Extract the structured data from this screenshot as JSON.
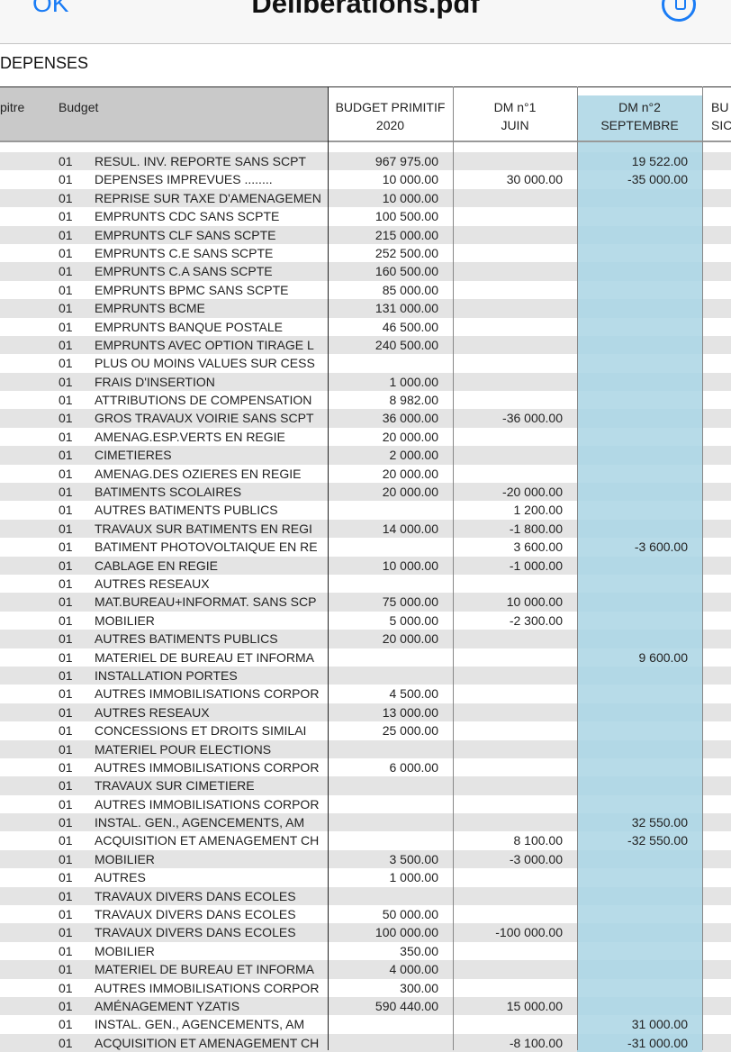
{
  "navbar": {
    "ok_label": "OK",
    "title": "Deliberations.pdf",
    "markup_icon": "markup-pen-icon",
    "accent": "#1a7cf5"
  },
  "section_title": "DEPENSES",
  "headers": {
    "chapitre": "pitre",
    "budget": "Budget",
    "bp_line1": "BUDGET PRIMITIF",
    "bp_line2": "2020",
    "dm1_line1": "DM n°1",
    "dm1_line2": "JUIN",
    "dm2_line1": "DM n°2",
    "dm2_line2": "SEPTEMBRE",
    "next_line1": "BU",
    "next_line2": "SIC"
  },
  "highlight_color": "#b7dbe8",
  "rows": [
    {
      "code": "01",
      "label": "RESUL. INV. REPORTE SANS SCPT",
      "bp": "967 975.00",
      "dm1": "",
      "dm2": "19 522.00"
    },
    {
      "code": "01",
      "label": "DEPENSES IMPREVUES ........",
      "bp": "10 000.00",
      "dm1": "30 000.00",
      "dm2": "-35 000.00"
    },
    {
      "code": "01",
      "label": "REPRISE SUR TAXE D'AMENAGEMEN",
      "bp": "10 000.00",
      "dm1": "",
      "dm2": ""
    },
    {
      "code": "01",
      "label": "EMPRUNTS CDC SANS SCPTE",
      "bp": "100 500.00",
      "dm1": "",
      "dm2": ""
    },
    {
      "code": "01",
      "label": "EMPRUNTS CLF SANS SCPTE",
      "bp": "215 000.00",
      "dm1": "",
      "dm2": ""
    },
    {
      "code": "01",
      "label": "EMPRUNTS C.E SANS SCPTE",
      "bp": "252 500.00",
      "dm1": "",
      "dm2": ""
    },
    {
      "code": "01",
      "label": "EMPRUNTS C.A SANS SCPTE",
      "bp": "160 500.00",
      "dm1": "",
      "dm2": ""
    },
    {
      "code": "01",
      "label": "EMPRUNTS BPMC SANS SCPTE",
      "bp": "85 000.00",
      "dm1": "",
      "dm2": ""
    },
    {
      "code": "01",
      "label": "EMPRUNTS BCME",
      "bp": "131 000.00",
      "dm1": "",
      "dm2": ""
    },
    {
      "code": "01",
      "label": "EMPRUNTS BANQUE POSTALE",
      "bp": "46 500.00",
      "dm1": "",
      "dm2": ""
    },
    {
      "code": "01",
      "label": "EMPRUNTS AVEC OPTION TIRAGE L",
      "bp": "240 500.00",
      "dm1": "",
      "dm2": ""
    },
    {
      "code": "01",
      "label": "PLUS OU MOINS VALUES SUR CESS",
      "bp": "",
      "dm1": "",
      "dm2": ""
    },
    {
      "code": "01",
      "label": "FRAIS D'INSERTION",
      "bp": "1 000.00",
      "dm1": "",
      "dm2": ""
    },
    {
      "code": "01",
      "label": "ATTRIBUTIONS DE COMPENSATION",
      "bp": "8 982.00",
      "dm1": "",
      "dm2": ""
    },
    {
      "code": "01",
      "label": "GROS TRAVAUX VOIRIE SANS SCPT",
      "bp": "36 000.00",
      "dm1": "-36 000.00",
      "dm2": ""
    },
    {
      "code": "01",
      "label": "AMENAG.ESP.VERTS EN REGIE",
      "bp": "20 000.00",
      "dm1": "",
      "dm2": ""
    },
    {
      "code": "01",
      "label": "CIMETIERES",
      "bp": "2 000.00",
      "dm1": "",
      "dm2": ""
    },
    {
      "code": "01",
      "label": "AMENAG.DES OZIERES EN REGIE",
      "bp": "20 000.00",
      "dm1": "",
      "dm2": ""
    },
    {
      "code": "01",
      "label": "BATIMENTS SCOLAIRES",
      "bp": "20 000.00",
      "dm1": "-20 000.00",
      "dm2": ""
    },
    {
      "code": "01",
      "label": "AUTRES BATIMENTS PUBLICS",
      "bp": "",
      "dm1": "1 200.00",
      "dm2": ""
    },
    {
      "code": "01",
      "label": "TRAVAUX SUR BATIMENTS EN REGI",
      "bp": "14 000.00",
      "dm1": "-1 800.00",
      "dm2": ""
    },
    {
      "code": "01",
      "label": "BATIMENT PHOTOVOLTAIQUE EN RE",
      "bp": "",
      "dm1": "3 600.00",
      "dm2": "-3 600.00"
    },
    {
      "code": "01",
      "label": "CABLAGE EN REGIE",
      "bp": "10 000.00",
      "dm1": "-1 000.00",
      "dm2": ""
    },
    {
      "code": "01",
      "label": "AUTRES RESEAUX",
      "bp": "",
      "dm1": "",
      "dm2": ""
    },
    {
      "code": "01",
      "label": "MAT.BUREAU+INFORMAT. SANS SCP",
      "bp": "75 000.00",
      "dm1": "10 000.00",
      "dm2": ""
    },
    {
      "code": "01",
      "label": "MOBILIER",
      "bp": "5 000.00",
      "dm1": "-2 300.00",
      "dm2": ""
    },
    {
      "code": "01",
      "label": "AUTRES BATIMENTS PUBLICS",
      "bp": "20 000.00",
      "dm1": "",
      "dm2": ""
    },
    {
      "code": "01",
      "label": "MATERIEL DE BUREAU ET INFORMA",
      "bp": "",
      "dm1": "",
      "dm2": "9 600.00"
    },
    {
      "code": "01",
      "label": "INSTALLATION PORTES",
      "bp": "",
      "dm1": "",
      "dm2": ""
    },
    {
      "code": "01",
      "label": "AUTRES IMMOBILISATIONS CORPOR",
      "bp": "4 500.00",
      "dm1": "",
      "dm2": ""
    },
    {
      "code": "01",
      "label": "AUTRES RESEAUX",
      "bp": "13 000.00",
      "dm1": "",
      "dm2": ""
    },
    {
      "code": "01",
      "label": "CONCESSIONS ET DROITS SIMILAI",
      "bp": "25 000.00",
      "dm1": "",
      "dm2": ""
    },
    {
      "code": "01",
      "label": "MATERIEL POUR ELECTIONS",
      "bp": "",
      "dm1": "",
      "dm2": ""
    },
    {
      "code": "01",
      "label": "AUTRES IMMOBILISATIONS CORPOR",
      "bp": "6 000.00",
      "dm1": "",
      "dm2": ""
    },
    {
      "code": "01",
      "label": "TRAVAUX SUR CIMETIERE",
      "bp": "",
      "dm1": "",
      "dm2": ""
    },
    {
      "code": "01",
      "label": "AUTRES IMMOBILISATIONS CORPOR",
      "bp": "",
      "dm1": "",
      "dm2": ""
    },
    {
      "code": "01",
      "label": "INSTAL. GEN., AGENCEMENTS, AM",
      "bp": "",
      "dm1": "",
      "dm2": "32 550.00"
    },
    {
      "code": "01",
      "label": "ACQUISITION ET AMENAGEMENT CH",
      "bp": "",
      "dm1": "8 100.00",
      "dm2": "-32 550.00"
    },
    {
      "code": "01",
      "label": "MOBILIER",
      "bp": "3 500.00",
      "dm1": "-3 000.00",
      "dm2": ""
    },
    {
      "code": "01",
      "label": "AUTRES",
      "bp": "1 000.00",
      "dm1": "",
      "dm2": ""
    },
    {
      "code": "01",
      "label": "TRAVAUX DIVERS DANS ECOLES",
      "bp": "",
      "dm1": "",
      "dm2": ""
    },
    {
      "code": "01",
      "label": "TRAVAUX DIVERS DANS ECOLES",
      "bp": "50 000.00",
      "dm1": "",
      "dm2": ""
    },
    {
      "code": "01",
      "label": "TRAVAUX DIVERS DANS ECOLES",
      "bp": "100 000.00",
      "dm1": "-100 000.00",
      "dm2": ""
    },
    {
      "code": "01",
      "label": "MOBILIER",
      "bp": "350.00",
      "dm1": "",
      "dm2": ""
    },
    {
      "code": "01",
      "label": "MATERIEL DE BUREAU ET INFORMA",
      "bp": "4 000.00",
      "dm1": "",
      "dm2": ""
    },
    {
      "code": "01",
      "label": "AUTRES IMMOBILISATIONS CORPOR",
      "bp": "300.00",
      "dm1": "",
      "dm2": ""
    },
    {
      "code": "01",
      "label": "AMÉNAGEMENT YZATIS",
      "bp": "590 440.00",
      "dm1": "15 000.00",
      "dm2": ""
    },
    {
      "code": "01",
      "label": "INSTAL. GEN., AGENCEMENTS, AM",
      "bp": "",
      "dm1": "",
      "dm2": "31 000.00"
    },
    {
      "code": "01",
      "label": "ACQUISITION ET AMENAGEMENT CH",
      "bp": "",
      "dm1": "-8 100.00",
      "dm2": "-31 000.00"
    }
  ]
}
